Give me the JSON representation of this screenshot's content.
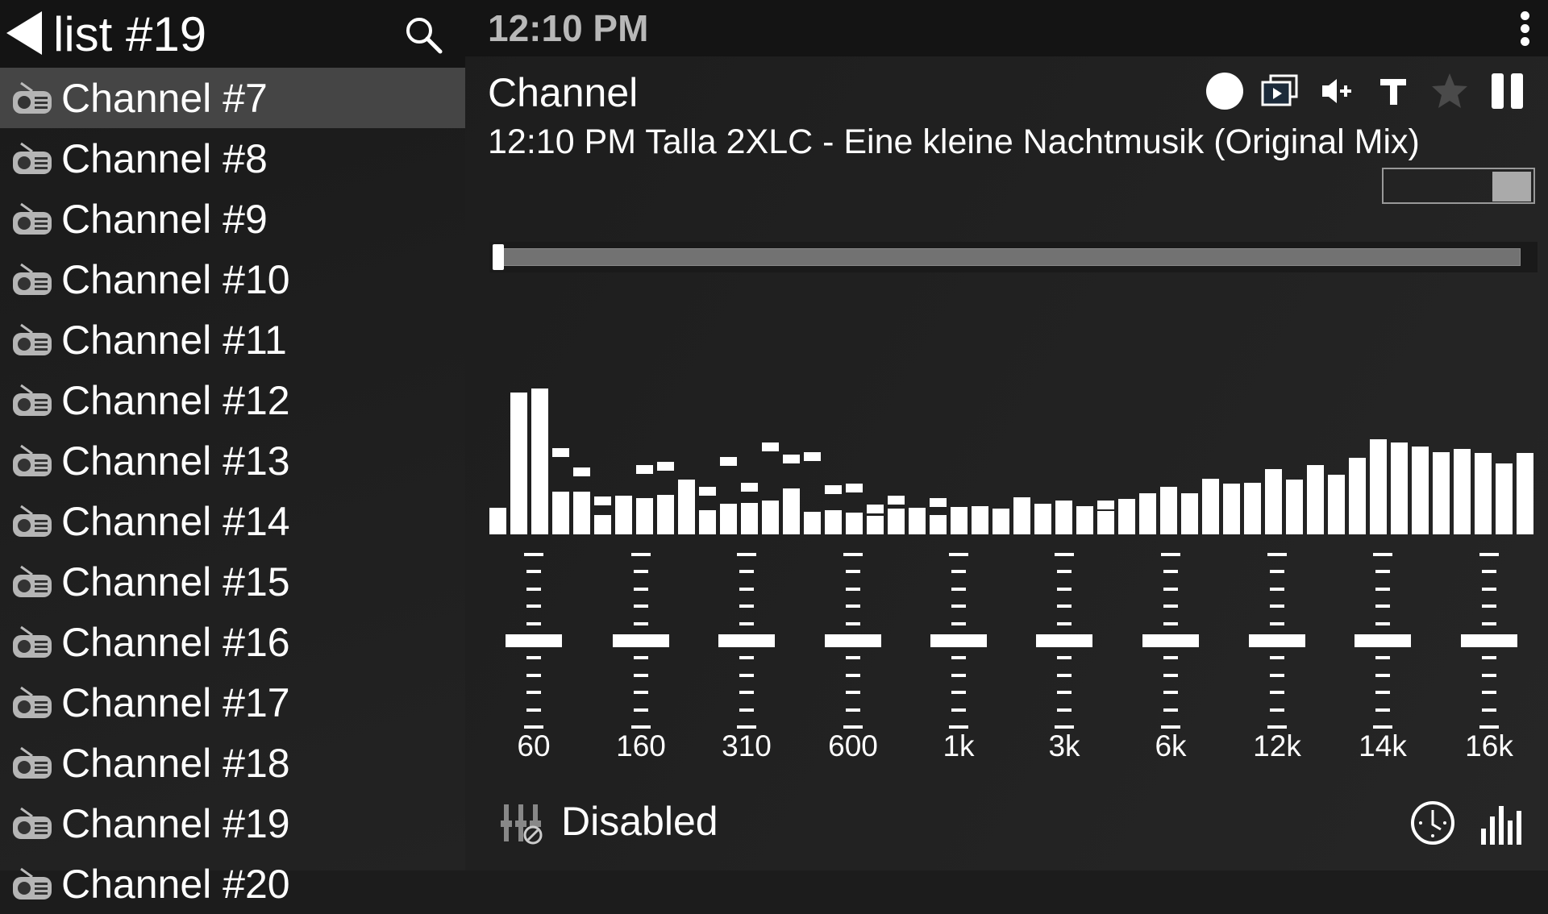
{
  "sidebar": {
    "title": "list #19",
    "back_icon": "back-triangle-icon",
    "search_icon": "search-icon",
    "items": [
      {
        "label": "Channel #7",
        "selected": true
      },
      {
        "label": "Channel #8"
      },
      {
        "label": "Channel #9"
      },
      {
        "label": "Channel #10"
      },
      {
        "label": "Channel #11"
      },
      {
        "label": "Channel #12"
      },
      {
        "label": "Channel #13"
      },
      {
        "label": "Channel #14"
      },
      {
        "label": "Channel #15"
      },
      {
        "label": "Channel #16"
      },
      {
        "label": "Channel #17"
      },
      {
        "label": "Channel #18"
      },
      {
        "label": "Channel #19"
      },
      {
        "label": "Channel #20"
      }
    ],
    "item_icon": "radio-icon"
  },
  "header": {
    "time": "12:10 PM",
    "menu_icon": "overflow-menu-icon"
  },
  "player": {
    "channel": "Channel",
    "now_playing": "12:10 PM Talla 2XLC - Eine kleine Nachtmusik (Original Mix)",
    "toolbar_icons": [
      "record-icon",
      "video-icon",
      "volume-up-icon",
      "text-icon",
      "star-icon",
      "pause-icon"
    ],
    "seek_progress": 0.0,
    "spectrum": {
      "levels": [
        33,
        176,
        181,
        53,
        53,
        24,
        48,
        45,
        49,
        68,
        30,
        38,
        39,
        42,
        57,
        28,
        30,
        27,
        23,
        32,
        33,
        24,
        34,
        35,
        32,
        46,
        38,
        42,
        35,
        29,
        44,
        51,
        59,
        51,
        69,
        63,
        64,
        81,
        68,
        86,
        74,
        95,
        118,
        114,
        109,
        102,
        106,
        101,
        88,
        101
      ],
      "peaks": [
        null,
        null,
        null,
        107,
        83,
        47,
        null,
        86,
        90,
        null,
        59,
        96,
        64,
        114,
        99,
        102,
        61,
        63,
        37,
        48,
        null,
        45,
        null,
        null,
        null,
        null,
        null,
        null,
        null,
        42,
        null,
        null,
        null,
        null,
        null,
        null,
        null,
        null,
        null,
        null,
        null,
        null,
        null,
        null,
        null,
        null,
        null,
        null,
        null,
        null
      ]
    }
  },
  "equalizer": {
    "bands": [
      {
        "label": "60",
        "gain": 0
      },
      {
        "label": "160",
        "gain": 0
      },
      {
        "label": "310",
        "gain": 0
      },
      {
        "label": "600",
        "gain": 0
      },
      {
        "label": "1k",
        "gain": 0
      },
      {
        "label": "3k",
        "gain": 0
      },
      {
        "label": "6k",
        "gain": 0
      },
      {
        "label": "12k",
        "gain": 0
      },
      {
        "label": "14k",
        "gain": 0
      },
      {
        "label": "16k",
        "gain": 0
      }
    ],
    "status": "Disabled",
    "status_icon": "equalizer-disabled-icon",
    "timer_icon": "clock-icon",
    "visualizer_icon": "bars-icon"
  },
  "colors": {
    "background": "#1c1c1c",
    "selected_row": "#454545",
    "header": "#141414",
    "time": "#b8b8b8",
    "star": "#4a4a4a"
  }
}
